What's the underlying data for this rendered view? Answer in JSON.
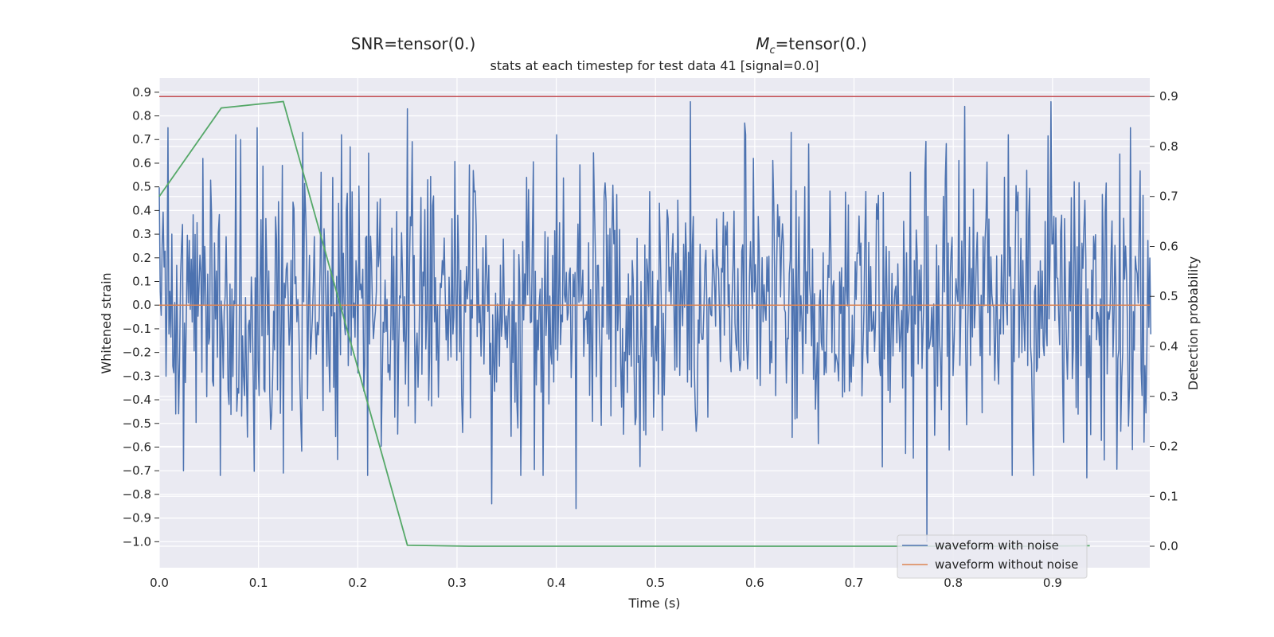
{
  "chart_data": {
    "type": "line",
    "suptitle_left": "SNR=tensor(0.)",
    "suptitle_right_symbol": "M",
    "suptitle_right_sub": "c",
    "suptitle_right_rest": "=tensor(0.)",
    "title": "stats at each timestep for test data 41 [signal=0.0]",
    "xlabel": "Time (s)",
    "ylabel_left": "Whitened strain",
    "ylabel_right": "Detection probability",
    "xlim": [
      0.0,
      0.998
    ],
    "ylim_left": [
      -1.11,
      0.96
    ],
    "ylim_right": [
      -0.043,
      0.937
    ],
    "x_ticks": [
      "0.0",
      "0.1",
      "0.2",
      "0.3",
      "0.4",
      "0.5",
      "0.6",
      "0.7",
      "0.8",
      "0.9"
    ],
    "y_left_ticks": [
      "0.9",
      "0.8",
      "0.7",
      "0.6",
      "0.5",
      "0.4",
      "0.3",
      "0.2",
      "0.1",
      "0.0",
      "−0.1",
      "−0.2",
      "−0.3",
      "−0.4",
      "−0.5",
      "−0.6",
      "−0.7",
      "−0.8",
      "−0.9",
      "−1.0"
    ],
    "y_right_ticks": [
      "0.9",
      "0.8",
      "0.7",
      "0.6",
      "0.5",
      "0.4",
      "0.3",
      "0.2",
      "0.1",
      "0.0"
    ],
    "grid": true,
    "legend_position": "lower-right",
    "legend": [
      "waveform with noise",
      "waveform without noise"
    ],
    "colors": {
      "noise": "#4c72b0",
      "clean": "#dd8452",
      "probability": "#55a868",
      "threshold": "#c44e52",
      "background": "#eaeaf2",
      "grid": "#ffffff"
    },
    "series": [
      {
        "name": "waveform with noise",
        "axis": "left",
        "generated": true,
        "sample_count": 1024,
        "sample_rate": 1024,
        "std": 0.3,
        "seed": 41,
        "spikes": [
          {
            "t": 0.009,
            "v": 0.75
          },
          {
            "t": 0.044,
            "v": 0.62
          },
          {
            "t": 0.082,
            "v": 0.7
          },
          {
            "t": 0.099,
            "v": 0.75
          },
          {
            "t": 0.125,
            "v": -0.71
          },
          {
            "t": 0.145,
            "v": 0.73
          },
          {
            "t": 0.25,
            "v": 0.83
          },
          {
            "t": 0.335,
            "v": -0.84
          },
          {
            "t": 0.42,
            "v": -0.86
          },
          {
            "t": 0.535,
            "v": 0.86
          },
          {
            "t": 0.59,
            "v": 0.77
          },
          {
            "t": 0.637,
            "v": 0.73
          },
          {
            "t": 0.773,
            "v": -1.0
          },
          {
            "t": 0.812,
            "v": 0.84
          },
          {
            "t": 0.898,
            "v": 0.86
          },
          {
            "t": 0.935,
            "v": -0.73
          },
          {
            "t": 0.979,
            "v": 0.75
          }
        ]
      },
      {
        "name": "waveform without noise",
        "axis": "left",
        "x": [
          0.0,
          0.998
        ],
        "y": [
          0.0,
          0.0
        ]
      },
      {
        "axis": "right",
        "x": [
          0.0,
          0.0625,
          0.125,
          0.25,
          0.3125,
          0.375,
          0.4375,
          0.5,
          0.5625,
          0.625,
          0.6875,
          0.75,
          0.8125,
          0.875,
          0.9375
        ],
        "y": [
          0.7,
          0.877,
          0.89,
          0.002,
          0.0,
          0.0,
          0.0,
          0.0,
          0.0,
          0.0,
          0.0,
          0.0,
          0.0,
          0.0,
          0.001
        ]
      },
      {
        "axis": "right",
        "x": [
          0.0,
          0.998
        ],
        "y": [
          0.9,
          0.9
        ]
      }
    ]
  }
}
